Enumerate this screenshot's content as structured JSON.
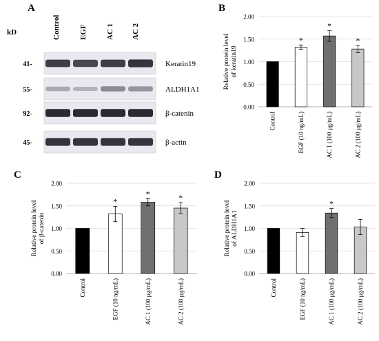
{
  "panel_letters": {
    "a": "A",
    "b": "B",
    "c": "C",
    "d": "D"
  },
  "blot": {
    "kd_label": "kD",
    "lanes": [
      "Control",
      "EGF",
      "AC 1",
      "AC 2"
    ],
    "rows": [
      {
        "mw": "41-",
        "protein": "Keratin19",
        "intensity": [
          0.85,
          0.8,
          0.85,
          0.9
        ]
      },
      {
        "mw": "55-",
        "protein": "ALDH1A1",
        "intensity": [
          0.3,
          0.25,
          0.45,
          0.4
        ]
      },
      {
        "mw": "92-",
        "protein": "β-catenin",
        "intensity": [
          0.95,
          0.95,
          0.95,
          0.95
        ]
      },
      {
        "mw": "45-",
        "protein": "β-actin",
        "intensity": [
          0.9,
          0.9,
          0.9,
          0.9
        ]
      }
    ]
  },
  "colors": {
    "control": "#000000",
    "egf": "#ffffff",
    "ac1": "#707070",
    "ac2": "#c8c8c8"
  },
  "chart_data": [
    {
      "panel": "B",
      "type": "bar",
      "categories": [
        "Control",
        "EGF (10 ng/mL)",
        "AC 1 (100 μg/mL)",
        "AC 2 (100 μg/mL)"
      ],
      "values": [
        1.0,
        1.32,
        1.57,
        1.28
      ],
      "errors": [
        0,
        0.05,
        0.12,
        0.08
      ],
      "significant": [
        "",
        "*",
        "*",
        "*"
      ],
      "ylabel": [
        "Relative protein level",
        "of keratin19"
      ],
      "ylim": [
        0,
        2
      ],
      "yticks": [
        "0.00",
        "0.50",
        "1.00",
        "1.50",
        "2.00"
      ],
      "grid": true
    },
    {
      "panel": "C",
      "type": "bar",
      "categories": [
        "Control",
        "EGF (10 ng/mL)",
        "AC 1 (100 μg/mL)",
        "AC 2 (100 μg/mL)"
      ],
      "values": [
        1.0,
        1.32,
        1.58,
        1.45
      ],
      "errors": [
        0,
        0.17,
        0.08,
        0.12
      ],
      "significant": [
        "",
        "*",
        "*",
        "*"
      ],
      "ylabel": [
        "Relative protein level",
        "of β-catenin"
      ],
      "ylim": [
        0,
        2
      ],
      "yticks": [
        "0.00",
        "0.50",
        "1.00",
        "1.50",
        "2.00"
      ],
      "grid": true
    },
    {
      "panel": "D",
      "type": "bar",
      "categories": [
        "Control",
        "EGF (10 ng/mL)",
        "AC 1 (100 μg/mL)",
        "AC 2 (100 μg/mL)"
      ],
      "values": [
        1.0,
        0.91,
        1.34,
        1.03
      ],
      "errors": [
        0,
        0.09,
        0.1,
        0.17
      ],
      "significant": [
        "",
        "",
        "*",
        ""
      ],
      "ylabel": [
        "Relative protein level",
        "of ALDH1A1"
      ],
      "ylim": [
        0,
        2
      ],
      "yticks": [
        "0.00",
        "0.50",
        "1.00",
        "1.50",
        "2.00"
      ],
      "grid": true
    }
  ]
}
